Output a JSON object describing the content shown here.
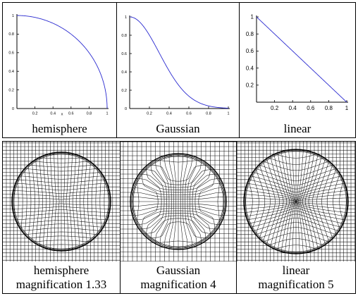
{
  "plots": [
    {
      "caption": "hemisphere",
      "profile": "hemisphere",
      "xticks": [
        "0.2",
        "0.4",
        "0.6",
        "0.8",
        "1"
      ],
      "yticks": [
        "1",
        "0.8",
        "0.6",
        "0.4",
        "0.2"
      ],
      "origin_label": "0",
      "xlabel": "x",
      "line_color": "#2a2ad0"
    },
    {
      "caption": "Gaussian",
      "profile": "gaussian",
      "xticks": [
        "0.2",
        "0.4",
        "0.6",
        "0.8",
        "1"
      ],
      "yticks": [
        "1",
        "0.8",
        "0.6",
        "0.4",
        "0.2"
      ],
      "origin_label": "0",
      "line_color": "#2a2ad0"
    },
    {
      "caption": "linear",
      "profile": "linear",
      "xticks": [
        "0.2",
        "0.4",
        "0.6",
        "0.8",
        "1"
      ],
      "yticks": [
        "1",
        "0.8",
        "0.6",
        "0.4",
        "0.2"
      ],
      "origin_label": "0",
      "line_color": "#2a2ad0"
    }
  ],
  "grids": [
    {
      "caption_line1": "hemisphere",
      "caption_line2": "magnification 1.33",
      "profile": "hemisphere",
      "magnification": 1.33
    },
    {
      "caption_line1": "Gaussian",
      "caption_line2": "magnification 4",
      "profile": "gaussian",
      "magnification": 4
    },
    {
      "caption_line1": "linear",
      "caption_line2": "magnification 5",
      "profile": "linear",
      "magnification": 5
    }
  ]
}
